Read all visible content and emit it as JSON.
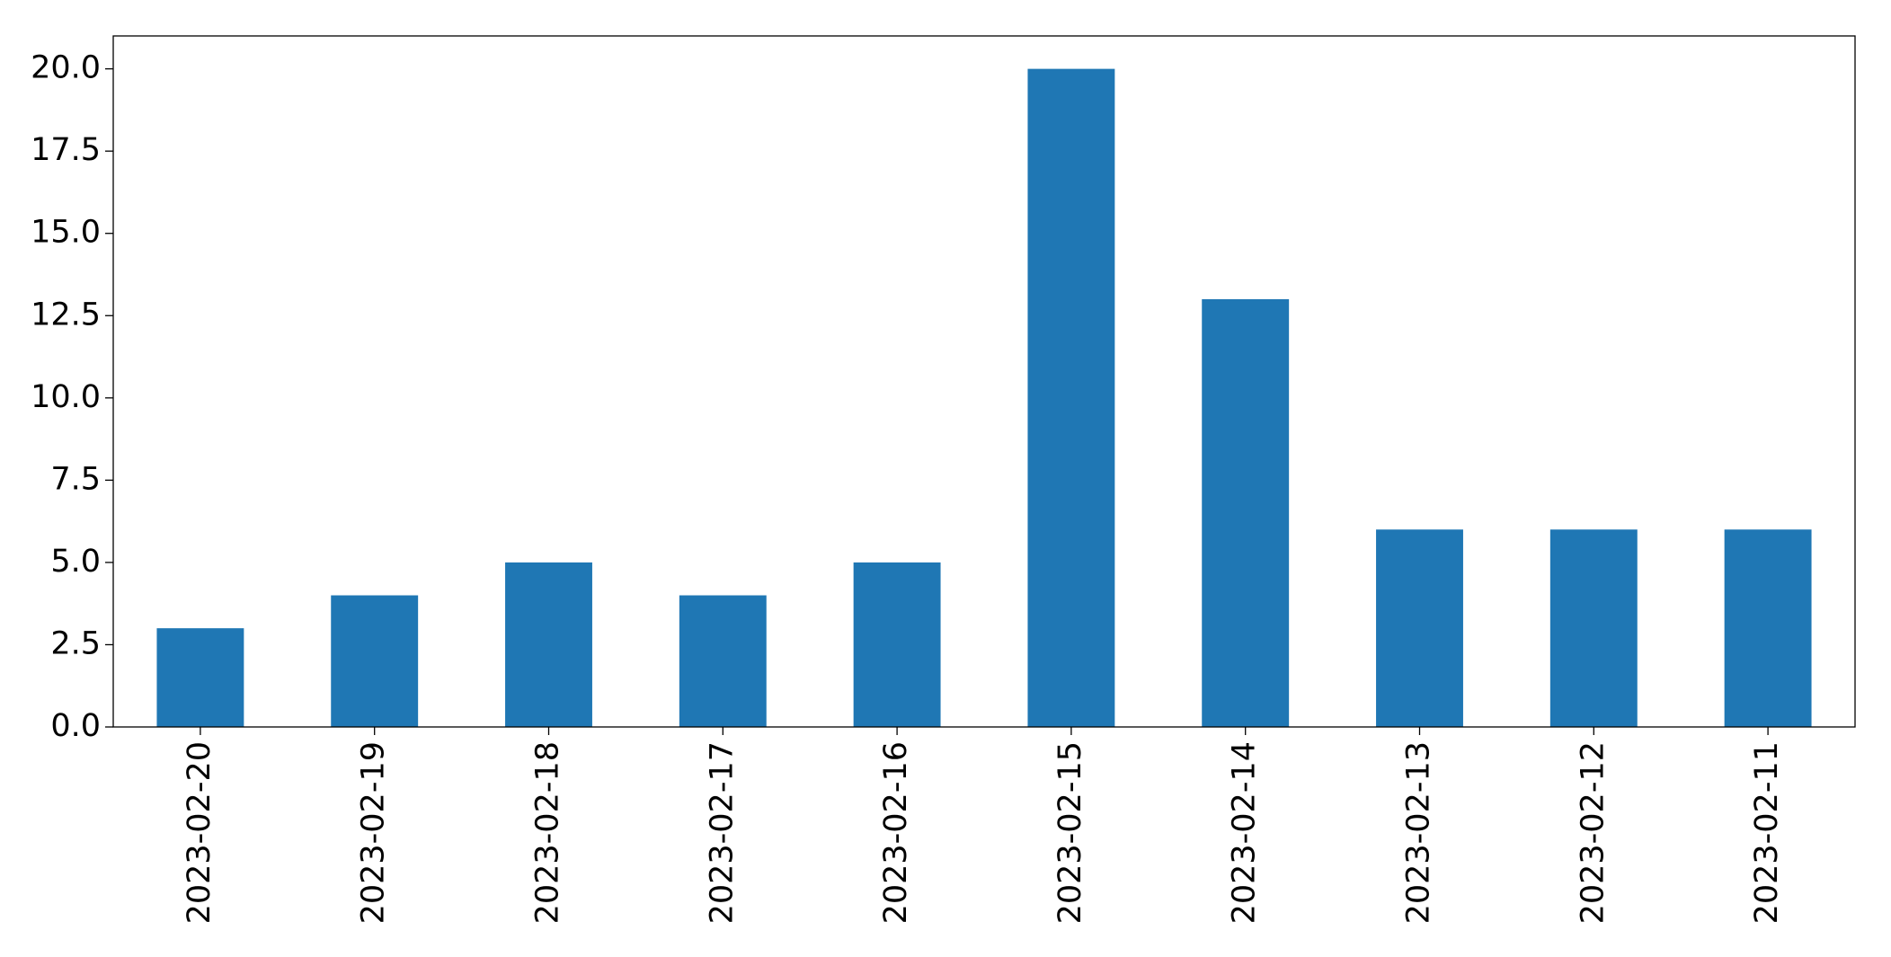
{
  "chart_data": {
    "type": "bar",
    "categories": [
      "2023-02-20",
      "2023-02-19",
      "2023-02-18",
      "2023-02-17",
      "2023-02-16",
      "2023-02-15",
      "2023-02-14",
      "2023-02-13",
      "2023-02-12",
      "2023-02-11"
    ],
    "values": [
      3,
      4,
      5,
      4,
      5,
      20,
      13,
      6,
      6,
      6
    ],
    "color": "#1f77b4",
    "ylim": [
      0,
      21
    ],
    "yticks": [
      {
        "value": 0,
        "label": "0.0"
      },
      {
        "value": 2.5,
        "label": "2.5"
      },
      {
        "value": 5,
        "label": "5.0"
      },
      {
        "value": 7.5,
        "label": "7.5"
      },
      {
        "value": 10,
        "label": "10.0"
      },
      {
        "value": 12.5,
        "label": "12.5"
      },
      {
        "value": 15,
        "label": "15.0"
      },
      {
        "value": 17.5,
        "label": "17.5"
      },
      {
        "value": 20,
        "label": "20.0"
      }
    ]
  }
}
